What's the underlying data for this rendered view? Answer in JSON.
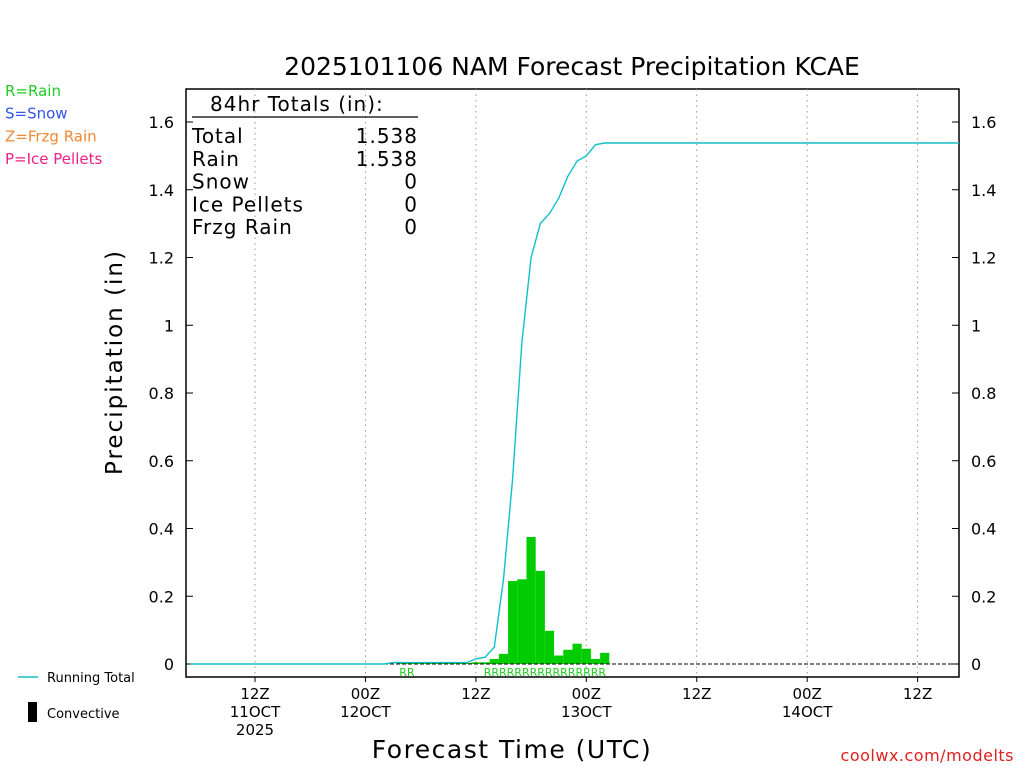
{
  "chart_data": {
    "type": "bar",
    "title": "2025101106 NAM Forecast Precipitation KCAE",
    "xlabel": "Forecast Time (UTC)",
    "ylabel": "Precipitation (in)",
    "ylim": [
      0,
      1.7
    ],
    "yticks": [
      0,
      0.2,
      0.4,
      0.6,
      0.8,
      1,
      1.2,
      1.4,
      1.6
    ],
    "ytick_labels": [
      "0",
      "0.2",
      "0.4",
      "0.6",
      "0.8",
      "1",
      "1.2",
      "1.4",
      "1.6"
    ],
    "xlim_hours": [
      -1.5,
      82.5
    ],
    "xticks": [
      {
        "hour": 6,
        "line1": "12Z",
        "line2": "11OCT",
        "line3": "2025"
      },
      {
        "hour": 18,
        "line1": "00Z",
        "line2": "12OCT",
        "line3": ""
      },
      {
        "hour": 30,
        "line1": "12Z",
        "line2": "",
        "line3": ""
      },
      {
        "hour": 42,
        "line1": "00Z",
        "line2": "13OCT",
        "line3": ""
      },
      {
        "hour": 54,
        "line1": "12Z",
        "line2": "",
        "line3": ""
      },
      {
        "hour": 66,
        "line1": "00Z",
        "line2": "14OCT",
        "line3": ""
      },
      {
        "hour": 78,
        "line1": "12Z",
        "line2": "",
        "line3": ""
      }
    ],
    "precip_type_legend": [
      {
        "label": "R=Rain",
        "color": "#22cc22"
      },
      {
        "label": "S=Snow",
        "color": "#3355ee"
      },
      {
        "label": "Z=Frzg Rain",
        "color": "#ee8833"
      },
      {
        "label": "P=Ice Pellets",
        "color": "#ee2288"
      }
    ],
    "series_legend": [
      {
        "label": "Running Total",
        "color": "#10c0c8"
      },
      {
        "label": "Convective",
        "color": "#000000"
      }
    ],
    "totals": {
      "header": "84hr Totals (in):",
      "rows": [
        {
          "label": "Total",
          "value": "1.538"
        },
        {
          "label": "Rain",
          "value": "1.538"
        },
        {
          "label": "Snow",
          "value": "0"
        },
        {
          "label": "Ice Pellets",
          "value": "0"
        },
        {
          "label": "Frzg Rain",
          "value": "0"
        }
      ]
    },
    "bar_width_hours": 1,
    "bar_color": "#00cc00",
    "bars": [
      {
        "hour": 22,
        "value": 0.003
      },
      {
        "hour": 23,
        "value": 0.003
      },
      {
        "hour": 24,
        "value": 0.003
      },
      {
        "hour": 25,
        "value": 0.003
      },
      {
        "hour": 26,
        "value": 0.003
      },
      {
        "hour": 27,
        "value": 0.003
      },
      {
        "hour": 28,
        "value": 0.003
      },
      {
        "hour": 29,
        "value": 0.003
      },
      {
        "hour": 30,
        "value": 0.005
      },
      {
        "hour": 31,
        "value": 0.005
      },
      {
        "hour": 32,
        "value": 0.015
      },
      {
        "hour": 33,
        "value": 0.03
      },
      {
        "hour": 34,
        "value": 0.245
      },
      {
        "hour": 35,
        "value": 0.25
      },
      {
        "hour": 36,
        "value": 0.375
      },
      {
        "hour": 37,
        "value": 0.275
      },
      {
        "hour": 38,
        "value": 0.098
      },
      {
        "hour": 39,
        "value": 0.025
      },
      {
        "hour": 40,
        "value": 0.042
      },
      {
        "hour": 41,
        "value": 0.06
      },
      {
        "hour": 42,
        "value": 0.045
      },
      {
        "hour": 43,
        "value": 0.015
      },
      {
        "hour": 44,
        "value": 0.033
      }
    ],
    "running_total": {
      "hours": [
        -1,
        20,
        21,
        29,
        30,
        31,
        32,
        33,
        34,
        35,
        36,
        37,
        38,
        39,
        40,
        41,
        42,
        43,
        44,
        45,
        82.5
      ],
      "values": [
        0,
        0,
        0.004,
        0.004,
        0.015,
        0.02,
        0.05,
        0.25,
        0.55,
        0.95,
        1.2,
        1.3,
        1.33,
        1.375,
        1.44,
        1.485,
        1.5,
        1.533,
        1.538,
        1.538,
        1.538
      ]
    },
    "type_codes": [
      {
        "hour": 22.5,
        "codes": "RR"
      },
      {
        "hour": 37.5,
        "codes": "RRRRRRRRRRRRRRRR"
      }
    ]
  },
  "credit": "coolwx.com/modelts"
}
